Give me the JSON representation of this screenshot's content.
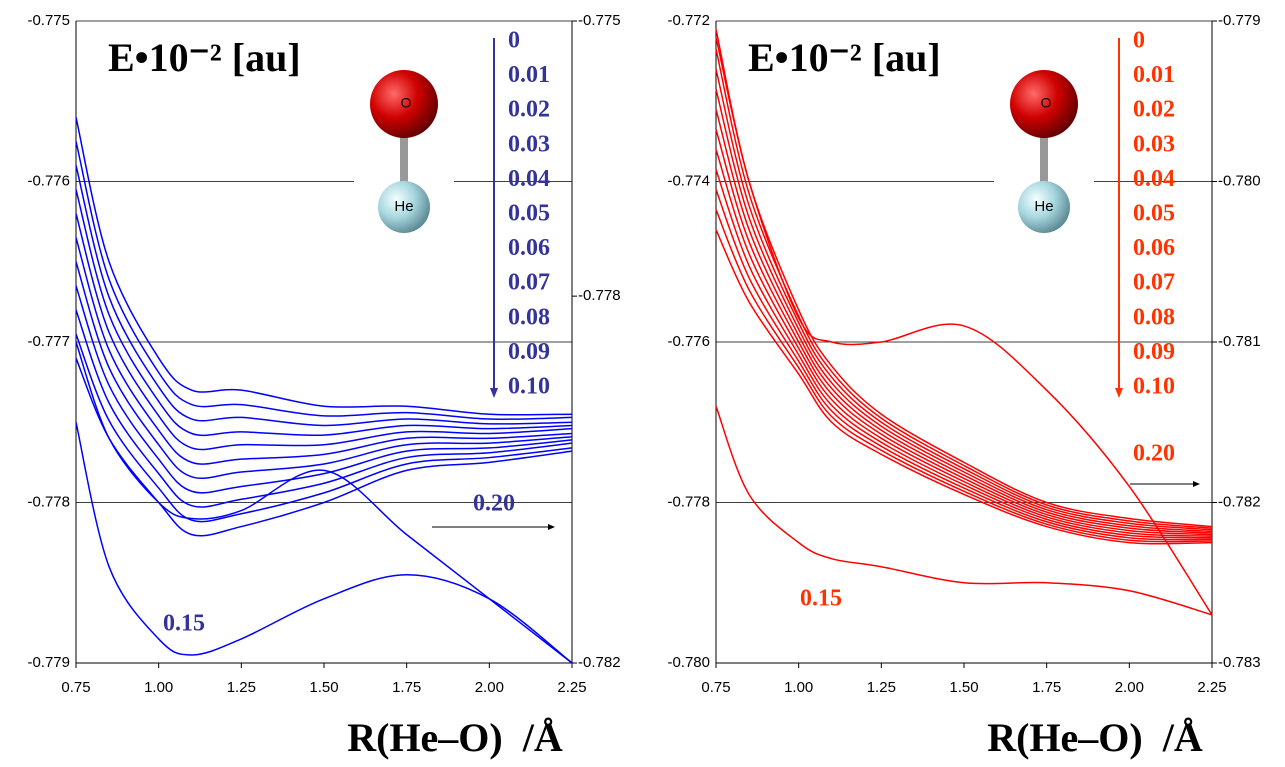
{
  "chart_data": [
    {
      "type": "line",
      "title": "E•10⁻² [au]",
      "x_label": "R(He–O)  /Å",
      "x": [
        0.75,
        0.85,
        1.0,
        1.1,
        1.25,
        1.5,
        1.75,
        2.0,
        2.25
      ],
      "xlim": [
        0.75,
        2.25
      ],
      "xticks": [
        0.75,
        {
          "value": 1,
          "label": "1.00"
        },
        1.25,
        {
          "value": 1.5,
          "label": "1.50"
        },
        1.75,
        {
          "value": 2,
          "label": "2.00"
        },
        2.25
      ],
      "ylim": [
        -0.779,
        -0.775
      ],
      "yticks": [
        -0.779,
        -0.778,
        -0.777,
        -0.776,
        -0.775
      ],
      "y2lim": [
        -0.782,
        -0.775
      ],
      "y2ticks": [
        -0.782,
        -0.778,
        -0.775
      ],
      "grid": true,
      "label_color": "#333399",
      "series": [
        {
          "name": "0",
          "color": "#0000ff",
          "values": [
            -0.7756,
            -0.7765,
            -0.7771,
            -0.7773,
            -0.7773,
            -0.7774,
            -0.7774,
            -0.77745,
            -0.77745
          ]
        },
        {
          "name": "0.01",
          "color": "#0000ff",
          "values": [
            -0.77575,
            -0.77661,
            -0.77719,
            -0.77739,
            -0.77739,
            -0.77746,
            -0.77744,
            -0.77748,
            -0.77747
          ]
        },
        {
          "name": "0.02",
          "color": "#0000ff",
          "values": [
            -0.7759,
            -0.77672,
            -0.77728,
            -0.77748,
            -0.77747,
            -0.77752,
            -0.77748,
            -0.77751,
            -0.7775
          ]
        },
        {
          "name": "0.03",
          "color": "#0000ff",
          "values": [
            -0.77605,
            -0.77683,
            -0.77737,
            -0.77757,
            -0.77756,
            -0.77758,
            -0.77752,
            -0.77754,
            -0.77752
          ]
        },
        {
          "name": "0.04",
          "color": "#0000ff",
          "values": [
            -0.7762,
            -0.77694,
            -0.77746,
            -0.77766,
            -0.77764,
            -0.77764,
            -0.77756,
            -0.77757,
            -0.77754
          ]
        },
        {
          "name": "0.05",
          "color": "#0000ff",
          "values": [
            -0.77635,
            -0.77705,
            -0.77755,
            -0.77775,
            -0.77773,
            -0.7777,
            -0.7776,
            -0.7776,
            -0.77757
          ]
        },
        {
          "name": "0.06",
          "color": "#0000ff",
          "values": [
            -0.7765,
            -0.77716,
            -0.77764,
            -0.77784,
            -0.77781,
            -0.77776,
            -0.77764,
            -0.77763,
            -0.77759
          ]
        },
        {
          "name": "0.07",
          "color": "#0000ff",
          "values": [
            -0.77665,
            -0.77727,
            -0.77773,
            -0.77793,
            -0.7779,
            -0.77782,
            -0.77768,
            -0.77766,
            -0.77761
          ]
        },
        {
          "name": "0.08",
          "color": "#0000ff",
          "values": [
            -0.7768,
            -0.77738,
            -0.77782,
            -0.77802,
            -0.77798,
            -0.77788,
            -0.77772,
            -0.77769,
            -0.77763
          ]
        },
        {
          "name": "0.09",
          "color": "#0000ff",
          "values": [
            -0.77695,
            -0.77749,
            -0.77791,
            -0.77811,
            -0.77807,
            -0.77794,
            -0.77776,
            -0.77772,
            -0.77766
          ]
        },
        {
          "name": "0.10",
          "color": "#0000ff",
          "values": [
            -0.7771,
            -0.7776,
            -0.778,
            -0.7782,
            -0.77815,
            -0.778,
            -0.7778,
            -0.77775,
            -0.77768
          ]
        },
        {
          "name": "0.15",
          "color": "#0000ff",
          "values": [
            -0.7775,
            -0.7784,
            -0.77885,
            -0.77895,
            -0.77885,
            -0.7786,
            -0.77845,
            -0.7786,
            -0.779
          ]
        },
        {
          "name": "0.20",
          "color": "#0000ff",
          "values": [
            -0.777,
            -0.7776,
            -0.778,
            -0.7781,
            -0.77805,
            -0.7778,
            -0.7782,
            -0.7786,
            -0.779
          ]
        }
      ]
    },
    {
      "type": "line",
      "title": "E•10⁻² [au]",
      "x_label": "R(He–O)  /Å",
      "x": [
        0.75,
        0.85,
        1.0,
        1.1,
        1.25,
        1.5,
        1.75,
        2.0,
        2.25
      ],
      "xlim": [
        0.75,
        2.25
      ],
      "xticks": [
        0.75,
        {
          "value": 1,
          "label": "1.00"
        },
        1.25,
        {
          "value": 1.5,
          "label": "1.50"
        },
        1.75,
        {
          "value": 2,
          "label": "2.00"
        },
        2.25
      ],
      "ylim": [
        -0.78,
        -0.772
      ],
      "yticks": [
        {
          "value": -0.78,
          "label": "-0.780"
        },
        -0.778,
        -0.776,
        -0.774,
        -0.772
      ],
      "y2lim": [
        -0.783,
        -0.779
      ],
      "y2ticks": [
        -0.783,
        -0.782,
        -0.781,
        {
          "value": -0.78,
          "label": "-0.780"
        },
        -0.779
      ],
      "grid": true,
      "label_color": "#ff3300",
      "series": [
        {
          "name": "0",
          "color": "#ff0000",
          "values": [
            -0.7721,
            -0.774,
            -0.7756,
            -0.7763,
            -0.7769,
            -0.7775,
            -0.778,
            -0.7782,
            -0.7783
          ]
        },
        {
          "name": "0.01",
          "color": "#ff0000",
          "values": [
            -0.77235,
            -0.77415,
            -0.77568,
            -0.77637,
            -0.77695,
            -0.77754,
            -0.77803,
            -0.77823,
            -0.77832
          ]
        },
        {
          "name": "0.02",
          "color": "#ff0000",
          "values": [
            -0.7726,
            -0.7743,
            -0.77576,
            -0.77644,
            -0.777,
            -0.77758,
            -0.77806,
            -0.77826,
            -0.77834
          ]
        },
        {
          "name": "0.03",
          "color": "#ff0000",
          "values": [
            -0.77285,
            -0.77445,
            -0.77584,
            -0.77651,
            -0.77705,
            -0.77762,
            -0.77809,
            -0.77829,
            -0.77836
          ]
        },
        {
          "name": "0.04",
          "color": "#ff0000",
          "values": [
            -0.7731,
            -0.7746,
            -0.77592,
            -0.77658,
            -0.7771,
            -0.77766,
            -0.77812,
            -0.77832,
            -0.77838
          ]
        },
        {
          "name": "0.05",
          "color": "#ff0000",
          "values": [
            -0.77335,
            -0.77475,
            -0.776,
            -0.77665,
            -0.77715,
            -0.7777,
            -0.77815,
            -0.77835,
            -0.7784
          ]
        },
        {
          "name": "0.06",
          "color": "#ff0000",
          "values": [
            -0.7736,
            -0.7749,
            -0.77608,
            -0.77672,
            -0.7772,
            -0.77774,
            -0.77818,
            -0.77838,
            -0.77842
          ]
        },
        {
          "name": "0.07",
          "color": "#ff0000",
          "values": [
            -0.77385,
            -0.77505,
            -0.77616,
            -0.77679,
            -0.77725,
            -0.77778,
            -0.77821,
            -0.77841,
            -0.77844
          ]
        },
        {
          "name": "0.08",
          "color": "#ff0000",
          "values": [
            -0.7741,
            -0.7752,
            -0.77624,
            -0.77686,
            -0.7773,
            -0.77782,
            -0.77824,
            -0.77844,
            -0.77846
          ]
        },
        {
          "name": "0.09",
          "color": "#ff0000",
          "values": [
            -0.77435,
            -0.77535,
            -0.77632,
            -0.77693,
            -0.77735,
            -0.77786,
            -0.77827,
            -0.77847,
            -0.77848
          ]
        },
        {
          "name": "0.10",
          "color": "#ff0000",
          "values": [
            -0.7746,
            -0.7755,
            -0.7764,
            -0.777,
            -0.7774,
            -0.7779,
            -0.7783,
            -0.7785,
            -0.7785
          ]
        },
        {
          "name": "0.15",
          "color": "#ff0000",
          "values": [
            -0.7768,
            -0.7779,
            -0.7785,
            -0.7787,
            -0.7788,
            -0.779,
            -0.779,
            -0.7791,
            -0.7794
          ]
        },
        {
          "name": "0.20",
          "color": "#ff0000",
          "values": [
            -0.7722,
            -0.774,
            -0.7757,
            -0.776,
            -0.776,
            -0.7758,
            -0.7766,
            -0.7778,
            -0.7794
          ]
        }
      ]
    }
  ]
}
